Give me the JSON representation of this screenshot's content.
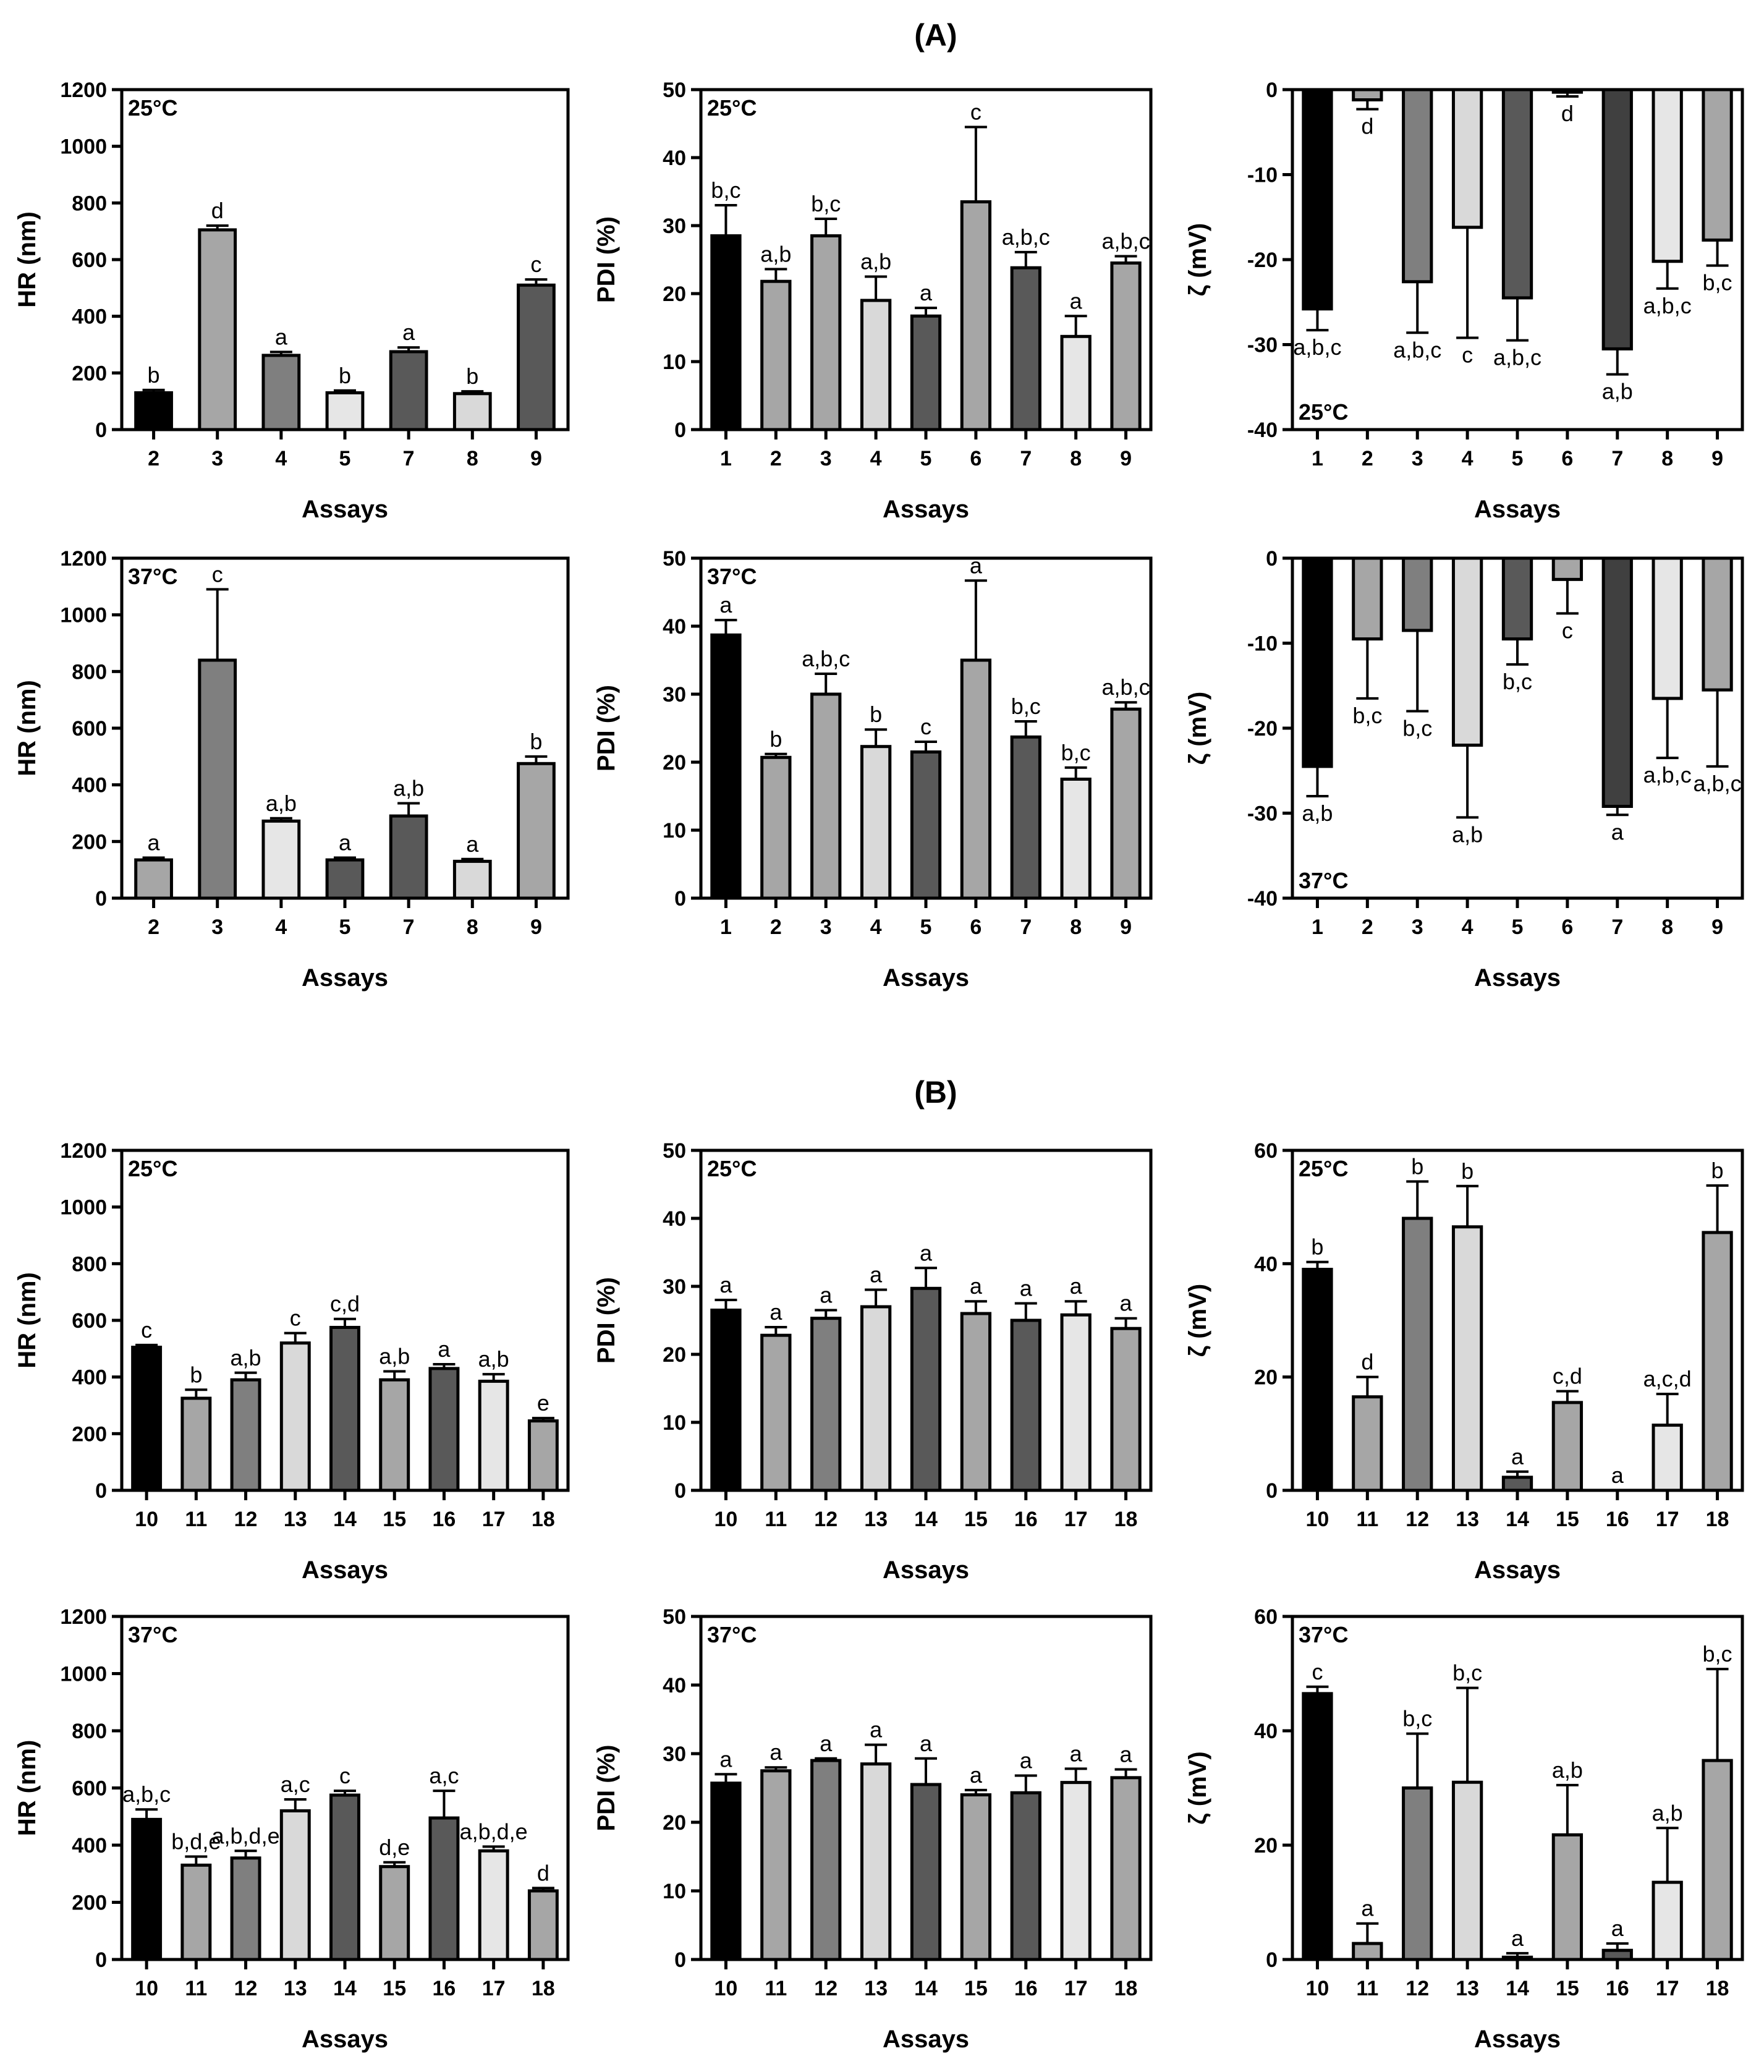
{
  "sections": [
    {
      "label": "(A)"
    },
    {
      "label": "(B)"
    }
  ],
  "chart_data": [
    {
      "id": "A-HR-25",
      "section": "A",
      "type": "bar",
      "temp": "25°C",
      "temp_pos": "top",
      "xlabel": "Assays",
      "ylabel": "HR (nm)",
      "ylim": [
        0,
        1200
      ],
      "yticks": [
        0,
        200,
        400,
        600,
        800,
        1000,
        1200
      ],
      "categories": [
        "2",
        "3",
        "4",
        "5",
        "7",
        "8",
        "9"
      ],
      "values": [
        130,
        705,
        262,
        130,
        275,
        127,
        510
      ],
      "errors": [
        10,
        15,
        12,
        8,
        15,
        8,
        20
      ],
      "letters": [
        "b",
        "d",
        "a",
        "b",
        "a",
        "b",
        "c"
      ],
      "colors": [
        "#000000",
        "#a6a6a6",
        "#7f7f7f",
        "#e6e6e6",
        "#595959",
        "#d9d9d9",
        "#595959"
      ]
    },
    {
      "id": "A-PDI-25",
      "section": "A",
      "type": "bar",
      "temp": "25°C",
      "temp_pos": "top",
      "xlabel": "Assays",
      "ylabel": "PDI (%)",
      "ylim": [
        0,
        50
      ],
      "yticks": [
        0,
        10,
        20,
        30,
        40,
        50
      ],
      "categories": [
        "1",
        "2",
        "3",
        "4",
        "5",
        "6",
        "7",
        "8",
        "9"
      ],
      "values": [
        28.5,
        21.8,
        28.5,
        19,
        16.7,
        33.5,
        23.8,
        13.7,
        24.5
      ],
      "errors": [
        4.5,
        1.8,
        2.5,
        3.5,
        1.2,
        11,
        2.3,
        3,
        1
      ],
      "letters": [
        "b,c",
        "a,b",
        "b,c",
        "a,b",
        "a",
        "c",
        "a,b,c",
        "a",
        "a,b,c"
      ],
      "colors": [
        "#000000",
        "#a6a6a6",
        "#a6a6a6",
        "#d9d9d9",
        "#595959",
        "#a6a6a6",
        "#595959",
        "#e6e6e6",
        "#a6a6a6"
      ]
    },
    {
      "id": "A-Z-25",
      "section": "A",
      "type": "bar",
      "temp": "25°C",
      "temp_pos": "bottom",
      "xlabel": "Assays",
      "ylabel": "ζ (mV)",
      "ylim": [
        -40,
        0
      ],
      "yticks": [
        0,
        -10,
        -20,
        -30,
        -40
      ],
      "categories": [
        "1",
        "2",
        "3",
        "4",
        "5",
        "6",
        "7",
        "8",
        "9"
      ],
      "values": [
        -25.8,
        -1.2,
        -22.6,
        -16.2,
        -24.5,
        -0.3,
        -30.5,
        -20.2,
        -17.7
      ],
      "errors": [
        2.5,
        1.1,
        6,
        13,
        5,
        0.5,
        3,
        3.2,
        3
      ],
      "letters": [
        "a,b,c",
        "d",
        "a,b,c",
        "c",
        "a,b,c",
        "d",
        "a,b",
        "a,b,c",
        "b,c"
      ],
      "colors": [
        "#000000",
        "#a6a6a6",
        "#7f7f7f",
        "#d9d9d9",
        "#595959",
        "#a6a6a6",
        "#404040",
        "#e6e6e6",
        "#a6a6a6"
      ]
    },
    {
      "id": "A-HR-37",
      "section": "A",
      "type": "bar",
      "temp": "37°C",
      "temp_pos": "top",
      "xlabel": "Assays",
      "ylabel": "HR (nm)",
      "ylim": [
        0,
        1200
      ],
      "yticks": [
        0,
        200,
        400,
        600,
        800,
        1000,
        1200
      ],
      "categories": [
        "2",
        "3",
        "4",
        "5",
        "7",
        "8",
        "9"
      ],
      "values": [
        135,
        840,
        272,
        135,
        290,
        130,
        475
      ],
      "errors": [
        8,
        250,
        10,
        8,
        45,
        8,
        25
      ],
      "letters": [
        "a",
        "c",
        "a,b",
        "a",
        "a,b",
        "a",
        "b"
      ],
      "colors": [
        "#a6a6a6",
        "#7f7f7f",
        "#e6e6e6",
        "#595959",
        "#595959",
        "#d9d9d9",
        "#a6a6a6"
      ]
    },
    {
      "id": "A-PDI-37",
      "section": "A",
      "type": "bar",
      "temp": "37°C",
      "temp_pos": "top",
      "xlabel": "Assays",
      "ylabel": "PDI (%)",
      "ylim": [
        0,
        50
      ],
      "yticks": [
        0,
        10,
        20,
        30,
        40,
        50
      ],
      "categories": [
        "1",
        "2",
        "3",
        "4",
        "5",
        "6",
        "7",
        "8",
        "9"
      ],
      "values": [
        38.7,
        20.7,
        30,
        22.3,
        21.5,
        35,
        23.7,
        17.5,
        27.8
      ],
      "errors": [
        2.2,
        0.5,
        3,
        2.5,
        1.5,
        11.7,
        2.3,
        1.7,
        1
      ],
      "letters": [
        "a",
        "b",
        "a,b,c",
        "b",
        "c",
        "a",
        "b,c",
        "b,c",
        "a,b,c"
      ],
      "colors": [
        "#000000",
        "#a6a6a6",
        "#a6a6a6",
        "#d9d9d9",
        "#595959",
        "#a6a6a6",
        "#595959",
        "#e6e6e6",
        "#a6a6a6"
      ]
    },
    {
      "id": "A-Z-37",
      "section": "A",
      "type": "bar",
      "temp": "37°C",
      "temp_pos": "bottom",
      "xlabel": "Assays",
      "ylabel": "ζ (mV)",
      "ylim": [
        -40,
        0
      ],
      "yticks": [
        0,
        -10,
        -20,
        -30,
        -40
      ],
      "categories": [
        "1",
        "2",
        "3",
        "4",
        "5",
        "6",
        "7",
        "8",
        "9"
      ],
      "values": [
        -24.5,
        -9.5,
        -8.5,
        -22,
        -9.5,
        -2.5,
        -29.2,
        -16.5,
        -15.5
      ],
      "errors": [
        3.5,
        7,
        9.5,
        8.5,
        3,
        4,
        1,
        7,
        9
      ],
      "letters": [
        "a,b",
        "b,c",
        "b,c",
        "a,b",
        "b,c",
        "c",
        "a",
        "a,b,c",
        "a,b,c"
      ],
      "colors": [
        "#000000",
        "#a6a6a6",
        "#7f7f7f",
        "#d9d9d9",
        "#595959",
        "#a6a6a6",
        "#404040",
        "#e6e6e6",
        "#a6a6a6"
      ]
    },
    {
      "id": "B-HR-25",
      "section": "B",
      "type": "bar",
      "temp": "25°C",
      "temp_pos": "top",
      "xlabel": "Assays",
      "ylabel": "HR (nm)",
      "ylim": [
        0,
        1200
      ],
      "yticks": [
        0,
        200,
        400,
        600,
        800,
        1000,
        1200
      ],
      "categories": [
        "10",
        "11",
        "12",
        "13",
        "14",
        "15",
        "16",
        "17",
        "18"
      ],
      "values": [
        505,
        325,
        390,
        520,
        575,
        390,
        430,
        385,
        245
      ],
      "errors": [
        8,
        30,
        25,
        35,
        30,
        30,
        15,
        25,
        10
      ],
      "letters": [
        "c",
        "b",
        "a,b",
        "c",
        "c,d",
        "a,b",
        "a",
        "a,b",
        "e"
      ],
      "colors": [
        "#000000",
        "#a6a6a6",
        "#7f7f7f",
        "#d9d9d9",
        "#595959",
        "#a6a6a6",
        "#595959",
        "#e6e6e6",
        "#a6a6a6"
      ]
    },
    {
      "id": "B-PDI-25",
      "section": "B",
      "type": "bar",
      "temp": "25°C",
      "temp_pos": "top",
      "xlabel": "Assays",
      "ylabel": "PDI (%)",
      "ylim": [
        0,
        50
      ],
      "yticks": [
        0,
        10,
        20,
        30,
        40,
        50
      ],
      "categories": [
        "10",
        "11",
        "12",
        "13",
        "14",
        "15",
        "16",
        "17",
        "18"
      ],
      "values": [
        26.5,
        22.8,
        25.3,
        27,
        29.7,
        26,
        25,
        25.8,
        23.8
      ],
      "errors": [
        1.5,
        1.2,
        1.2,
        2.5,
        3,
        1.8,
        2.5,
        2,
        1.5
      ],
      "letters": [
        "a",
        "a",
        "a",
        "a",
        "a",
        "a",
        "a",
        "a",
        "a"
      ],
      "colors": [
        "#000000",
        "#a6a6a6",
        "#7f7f7f",
        "#d9d9d9",
        "#595959",
        "#a6a6a6",
        "#595959",
        "#e6e6e6",
        "#a6a6a6"
      ]
    },
    {
      "id": "B-Z-25",
      "section": "B",
      "type": "bar",
      "temp": "25°C",
      "temp_pos": "top",
      "xlabel": "Assays",
      "ylabel": "ζ (mV)",
      "ylim": [
        0,
        60
      ],
      "yticks": [
        0,
        20,
        40,
        60
      ],
      "categories": [
        "10",
        "11",
        "12",
        "13",
        "14",
        "15",
        "16",
        "17",
        "18"
      ],
      "values": [
        39,
        16.5,
        48,
        46.5,
        2.3,
        15.5,
        0,
        11.5,
        45.5
      ],
      "errors": [
        1.3,
        3.5,
        6.5,
        7.2,
        1,
        2,
        0,
        5.5,
        8.3
      ],
      "letters": [
        "b",
        "d",
        "b",
        "b",
        "a",
        "c,d",
        "a",
        "a,c,d",
        "b"
      ],
      "colors": [
        "#000000",
        "#a6a6a6",
        "#7f7f7f",
        "#d9d9d9",
        "#595959",
        "#a6a6a6",
        "#595959",
        "#e6e6e6",
        "#a6a6a6"
      ]
    },
    {
      "id": "B-HR-37",
      "section": "B",
      "type": "bar",
      "temp": "37°C",
      "temp_pos": "top",
      "xlabel": "Assays",
      "ylabel": "HR (nm)",
      "ylim": [
        0,
        1200
      ],
      "yticks": [
        0,
        200,
        400,
        600,
        800,
        1000,
        1200
      ],
      "categories": [
        "10",
        "11",
        "12",
        "13",
        "14",
        "15",
        "16",
        "17",
        "18"
      ],
      "values": [
        490,
        330,
        355,
        520,
        575,
        325,
        495,
        380,
        240
      ],
      "errors": [
        35,
        30,
        25,
        40,
        15,
        15,
        95,
        15,
        10
      ],
      "letters": [
        "a,b,c",
        "b,d,e",
        "a,b,d,e",
        "a,c",
        "c",
        "d,e",
        "a,c",
        "a,b,d,e",
        "d"
      ],
      "colors": [
        "#000000",
        "#a6a6a6",
        "#7f7f7f",
        "#d9d9d9",
        "#595959",
        "#a6a6a6",
        "#595959",
        "#e6e6e6",
        "#a6a6a6"
      ]
    },
    {
      "id": "B-PDI-37",
      "section": "B",
      "type": "bar",
      "temp": "37°C",
      "temp_pos": "top",
      "xlabel": "Assays",
      "ylabel": "PDI (%)",
      "ylim": [
        0,
        50
      ],
      "yticks": [
        0,
        10,
        20,
        30,
        40,
        50
      ],
      "categories": [
        "10",
        "11",
        "12",
        "13",
        "14",
        "15",
        "16",
        "17",
        "18"
      ],
      "values": [
        25.7,
        27.5,
        29,
        28.5,
        25.5,
        24,
        24.3,
        25.8,
        26.5
      ],
      "errors": [
        1.3,
        0.5,
        0.3,
        2.8,
        3.8,
        0.7,
        2.5,
        2,
        1.2
      ],
      "letters": [
        "a",
        "a",
        "a",
        "a",
        "a",
        "a",
        "a",
        "a",
        "a"
      ],
      "colors": [
        "#000000",
        "#a6a6a6",
        "#7f7f7f",
        "#d9d9d9",
        "#595959",
        "#a6a6a6",
        "#595959",
        "#e6e6e6",
        "#a6a6a6"
      ]
    },
    {
      "id": "B-Z-37",
      "section": "B",
      "type": "bar",
      "temp": "37°C",
      "temp_pos": "top",
      "xlabel": "Assays",
      "ylabel": "ζ (mV)",
      "ylim": [
        0,
        60
      ],
      "yticks": [
        0,
        20,
        40,
        60
      ],
      "categories": [
        "10",
        "11",
        "12",
        "13",
        "14",
        "15",
        "16",
        "17",
        "18"
      ],
      "values": [
        46.5,
        2.8,
        30,
        31,
        0.4,
        21.8,
        1.6,
        13.5,
        34.8
      ],
      "errors": [
        1.2,
        3.5,
        9.5,
        16.5,
        0.7,
        8.7,
        1.2,
        9.5,
        16
      ],
      "letters": [
        "c",
        "a",
        "b,c",
        "b,c",
        "a",
        "a,b",
        "a",
        "a,b",
        "b,c"
      ],
      "colors": [
        "#000000",
        "#a6a6a6",
        "#7f7f7f",
        "#d9d9d9",
        "#595959",
        "#a6a6a6",
        "#595959",
        "#e6e6e6",
        "#a6a6a6"
      ]
    }
  ]
}
